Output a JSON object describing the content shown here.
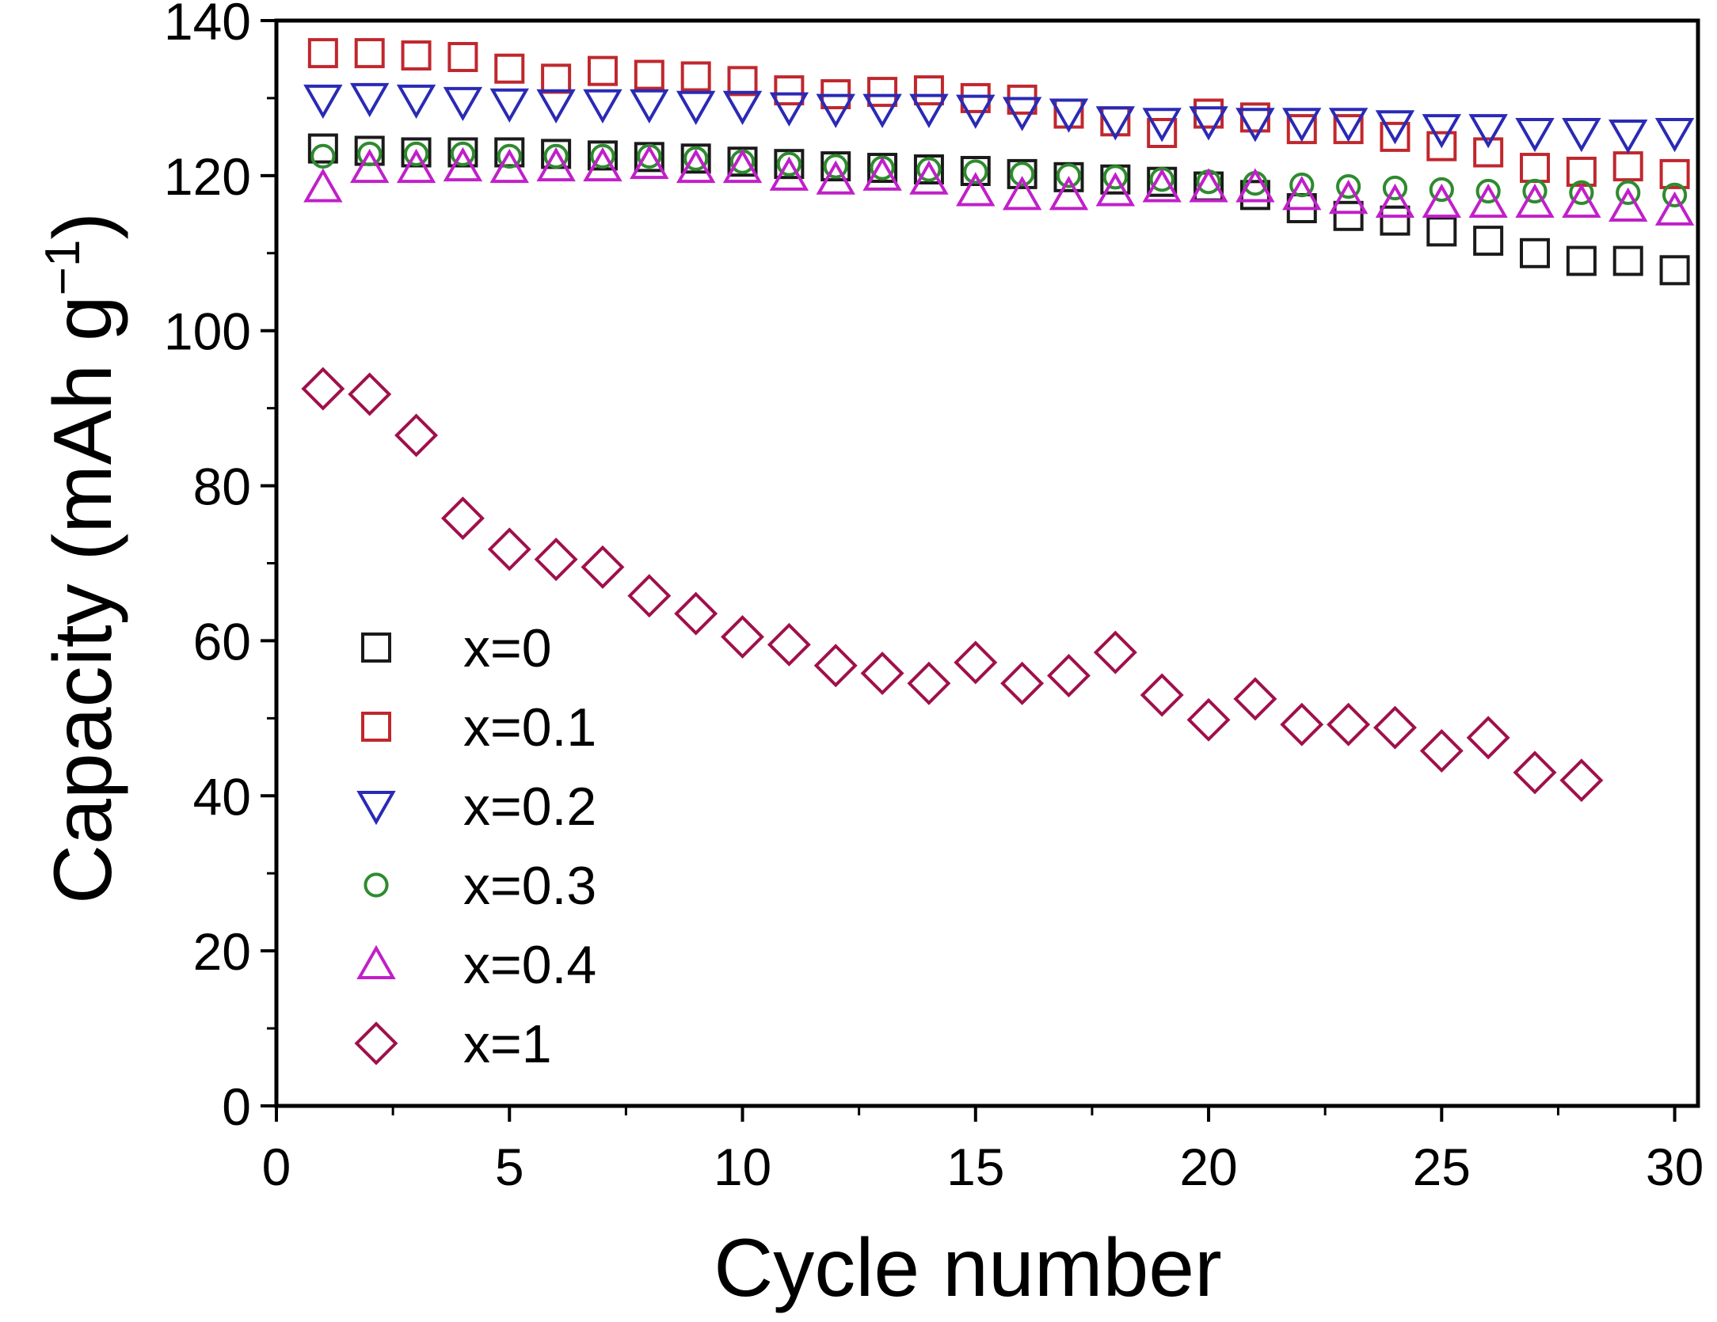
{
  "chart_data": {
    "type": "scatter",
    "title": "",
    "xlabel": "Cycle number",
    "ylabel_main": "Capacity (mAh g",
    "ylabel_sup": "−1",
    "ylabel_close": ")",
    "xlim": [
      0,
      30.5
    ],
    "ylim": [
      0,
      140
    ],
    "xticks": [
      0,
      5,
      10,
      15,
      20,
      25,
      30
    ],
    "yticks": [
      0,
      20,
      40,
      60,
      80,
      100,
      120,
      140
    ],
    "xtick_labels": [
      "0",
      "5",
      "10",
      "15",
      "20",
      "25",
      "30"
    ],
    "ytick_labels": [
      "0",
      "20",
      "40",
      "60",
      "80",
      "100",
      "120",
      "140"
    ],
    "legend_position": "bottom-left",
    "series": [
      {
        "name": "x=0",
        "marker": "square",
        "color": "#1a1a1a",
        "x": [
          1,
          2,
          3,
          4,
          5,
          6,
          7,
          8,
          9,
          10,
          11,
          12,
          13,
          14,
          15,
          16,
          17,
          18,
          19,
          20,
          21,
          22,
          23,
          24,
          25,
          26,
          27,
          28,
          29,
          30
        ],
        "values": [
          123.5,
          123.2,
          123.0,
          123.0,
          123.0,
          122.8,
          122.6,
          122.4,
          122.2,
          121.8,
          121.5,
          121.2,
          121.0,
          120.8,
          120.6,
          120.2,
          119.8,
          119.5,
          119.2,
          118.6,
          117.5,
          115.8,
          114.8,
          114.2,
          112.8,
          111.6,
          110.0,
          109.0,
          109.0,
          107.8
        ]
      },
      {
        "name": "x=0.1",
        "marker": "square",
        "color": "#c0272d",
        "x": [
          1,
          2,
          3,
          4,
          5,
          6,
          7,
          8,
          9,
          10,
          11,
          12,
          13,
          14,
          15,
          16,
          17,
          18,
          19,
          20,
          21,
          22,
          23,
          24,
          25,
          26,
          27,
          28,
          29,
          30
        ],
        "values": [
          135.8,
          135.8,
          135.5,
          135.3,
          133.8,
          132.5,
          133.5,
          133.0,
          132.8,
          132.2,
          131.0,
          130.5,
          130.8,
          131.0,
          130.0,
          129.8,
          128.0,
          127.0,
          125.5,
          128.0,
          127.5,
          126.0,
          126.0,
          125.0,
          123.8,
          123.0,
          121.0,
          120.5,
          121.2,
          120.2
        ]
      },
      {
        "name": "x=0.2",
        "marker": "triangle-down",
        "color": "#2a2ab5",
        "x": [
          1,
          2,
          3,
          4,
          5,
          6,
          7,
          8,
          9,
          10,
          11,
          12,
          13,
          14,
          15,
          16,
          17,
          18,
          19,
          20,
          21,
          22,
          23,
          24,
          25,
          26,
          27,
          28,
          29,
          30
        ],
        "values": [
          129.8,
          130.0,
          129.8,
          129.5,
          129.3,
          129.2,
          129.2,
          129.2,
          129.0,
          129.0,
          128.8,
          128.6,
          128.6,
          128.6,
          128.5,
          128.2,
          128.0,
          127.0,
          126.8,
          127.0,
          126.8,
          126.8,
          126.8,
          126.5,
          126.0,
          126.0,
          125.5,
          125.5,
          125.3,
          125.5
        ]
      },
      {
        "name": "x=0.3",
        "marker": "circle",
        "color": "#2e8b2e",
        "x": [
          1,
          2,
          3,
          4,
          5,
          6,
          7,
          8,
          9,
          10,
          11,
          12,
          13,
          14,
          15,
          16,
          17,
          18,
          19,
          20,
          21,
          22,
          23,
          24,
          25,
          26,
          27,
          28,
          29,
          30
        ],
        "values": [
          122.5,
          122.8,
          122.8,
          122.8,
          122.5,
          122.5,
          122.5,
          122.5,
          122.2,
          121.8,
          121.5,
          121.2,
          121.0,
          120.8,
          120.5,
          120.2,
          120.0,
          119.8,
          119.5,
          119.2,
          119.0,
          118.8,
          118.6,
          118.4,
          118.2,
          118.0,
          118.0,
          117.8,
          117.8,
          117.5
        ]
      },
      {
        "name": "x=0.4",
        "marker": "triangle-up",
        "color": "#c020c8",
        "x": [
          1,
          2,
          3,
          4,
          5,
          6,
          7,
          8,
          9,
          10,
          11,
          12,
          13,
          14,
          15,
          16,
          17,
          18,
          19,
          20,
          21,
          22,
          23,
          24,
          25,
          26,
          27,
          28,
          29,
          30
        ],
        "values": [
          118.5,
          121.0,
          121.0,
          121.2,
          121.0,
          121.2,
          121.2,
          121.5,
          121.0,
          121.0,
          120.0,
          119.5,
          120.0,
          119.5,
          118.0,
          117.5,
          117.5,
          118.0,
          118.5,
          118.5,
          118.5,
          117.5,
          117.0,
          116.5,
          116.5,
          116.5,
          116.5,
          116.5,
          116.0,
          115.5
        ]
      },
      {
        "name": "x=1",
        "marker": "diamond",
        "color": "#a0104a",
        "x": [
          1,
          2,
          3,
          4,
          5,
          6,
          7,
          8,
          9,
          10,
          11,
          12,
          13,
          14,
          15,
          16,
          17,
          18,
          19,
          20,
          21,
          22,
          23,
          24,
          25,
          26,
          27,
          28
        ],
        "values": [
          92.5,
          91.8,
          86.5,
          75.8,
          71.8,
          70.5,
          69.5,
          65.8,
          63.5,
          60.5,
          59.5,
          56.8,
          55.8,
          54.5,
          57.2,
          54.5,
          55.5,
          58.5,
          53.0,
          49.8,
          52.5,
          49.2,
          49.2,
          48.8,
          45.8,
          47.5,
          43.0,
          42.0
        ]
      }
    ]
  }
}
